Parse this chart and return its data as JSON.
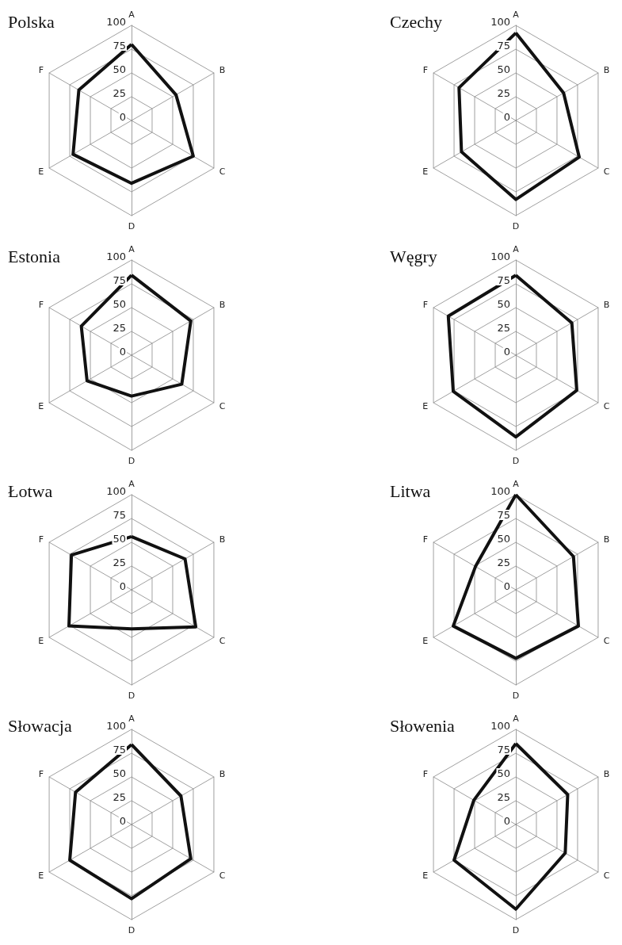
{
  "chart_data": [
    {
      "type": "radar",
      "title": "Polska",
      "categories": [
        "A",
        "B",
        "C",
        "D",
        "E",
        "F"
      ],
      "series": [
        {
          "color": "#111111",
          "values": [
            80,
            54,
            75,
            66,
            71,
            64
          ]
        }
      ],
      "ylim": [
        0,
        100
      ],
      "yticks": [
        0,
        25,
        50,
        75,
        100
      ],
      "grid": true,
      "marker": "none"
    },
    {
      "type": "radar",
      "title": "Czechy",
      "categories": [
        "A",
        "B",
        "C",
        "D",
        "E",
        "F"
      ],
      "series": [
        {
          "color": "#111111",
          "values": [
            92,
            58,
            77,
            83,
            66,
            69
          ]
        }
      ],
      "ylim": [
        0,
        100
      ],
      "yticks": [
        0,
        25,
        50,
        75,
        100
      ],
      "grid": true,
      "marker": "none"
    },
    {
      "type": "radar",
      "title": "Estonia",
      "categories": [
        "A",
        "B",
        "C",
        "D",
        "E",
        "F"
      ],
      "series": [
        {
          "color": "#111111",
          "values": [
            84,
            72,
            61,
            43,
            54,
            61
          ]
        }
      ],
      "ylim": [
        0,
        100
      ],
      "yticks": [
        0,
        25,
        50,
        75,
        100
      ],
      "grid": true,
      "marker": "none"
    },
    {
      "type": "radar",
      "title": "Węgry",
      "categories": [
        "A",
        "B",
        "C",
        "D",
        "E",
        "F"
      ],
      "series": [
        {
          "color": "#111111",
          "values": [
            84,
            68,
            74,
            86,
            76,
            82
          ]
        }
      ],
      "ylim": [
        0,
        100
      ],
      "yticks": [
        0,
        25,
        50,
        75,
        100
      ],
      "grid": true,
      "marker": "none"
    },
    {
      "type": "radar",
      "title": "Łotwa",
      "categories": [
        "A",
        "B",
        "C",
        "D",
        "E",
        "F"
      ],
      "series": [
        {
          "color": "#111111",
          "values": [
            56,
            65,
            78,
            41,
            76,
            73
          ]
        }
      ],
      "ylim": [
        0,
        100
      ],
      "yticks": [
        0,
        25,
        50,
        75,
        100
      ],
      "grid": true,
      "marker": "none"
    },
    {
      "type": "radar",
      "title": "Litwa",
      "categories": [
        "A",
        "B",
        "C",
        "D",
        "E",
        "F"
      ],
      "series": [
        {
          "color": "#111111",
          "values": [
            100,
            70,
            76,
            72,
            76,
            49
          ]
        }
      ],
      "ylim": [
        0,
        100
      ],
      "yticks": [
        0,
        25,
        50,
        75,
        100
      ],
      "grid": true,
      "marker": "none"
    },
    {
      "type": "radar",
      "title": "Słowacja",
      "categories": [
        "A",
        "B",
        "C",
        "D",
        "E",
        "F"
      ],
      "series": [
        {
          "color": "#111111",
          "values": [
            84,
            60,
            72,
            78,
            75,
            68
          ]
        }
      ],
      "ylim": [
        0,
        100
      ],
      "yticks": [
        0,
        25,
        50,
        75,
        100
      ],
      "grid": true,
      "marker": "none"
    },
    {
      "type": "radar",
      "title": "Słowenia",
      "categories": [
        "A",
        "B",
        "C",
        "D",
        "E",
        "F"
      ],
      "series": [
        {
          "color": "#111111",
          "values": [
            85,
            63,
            60,
            89,
            75,
            51
          ]
        }
      ],
      "ylim": [
        0,
        100
      ],
      "yticks": [
        0,
        25,
        50,
        75,
        100
      ],
      "grid": true,
      "marker": "none"
    }
  ]
}
